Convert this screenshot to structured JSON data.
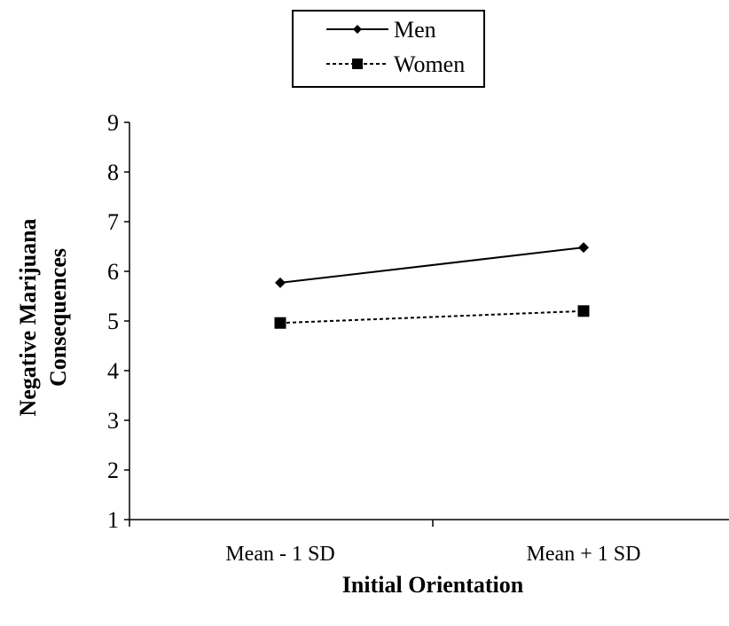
{
  "chart_data": {
    "type": "line",
    "title": "",
    "xlabel": "Initial Orientation",
    "ylabel_lines": [
      "Negative Marijuana",
      "Consequences"
    ],
    "categories": [
      "Mean - 1 SD",
      "Mean + 1 SD"
    ],
    "ylim": [
      1,
      9
    ],
    "yticks": [
      1,
      2,
      3,
      4,
      5,
      6,
      7,
      8,
      9
    ],
    "grid": false,
    "legend_position": "top-center",
    "series": [
      {
        "name": "Men",
        "values": [
          5.77,
          6.48
        ],
        "line_style": "solid",
        "marker": "diamond",
        "color": "#000000"
      },
      {
        "name": "Women",
        "values": [
          4.96,
          5.2
        ],
        "line_style": "dashed",
        "marker": "square",
        "color": "#000000"
      }
    ]
  }
}
